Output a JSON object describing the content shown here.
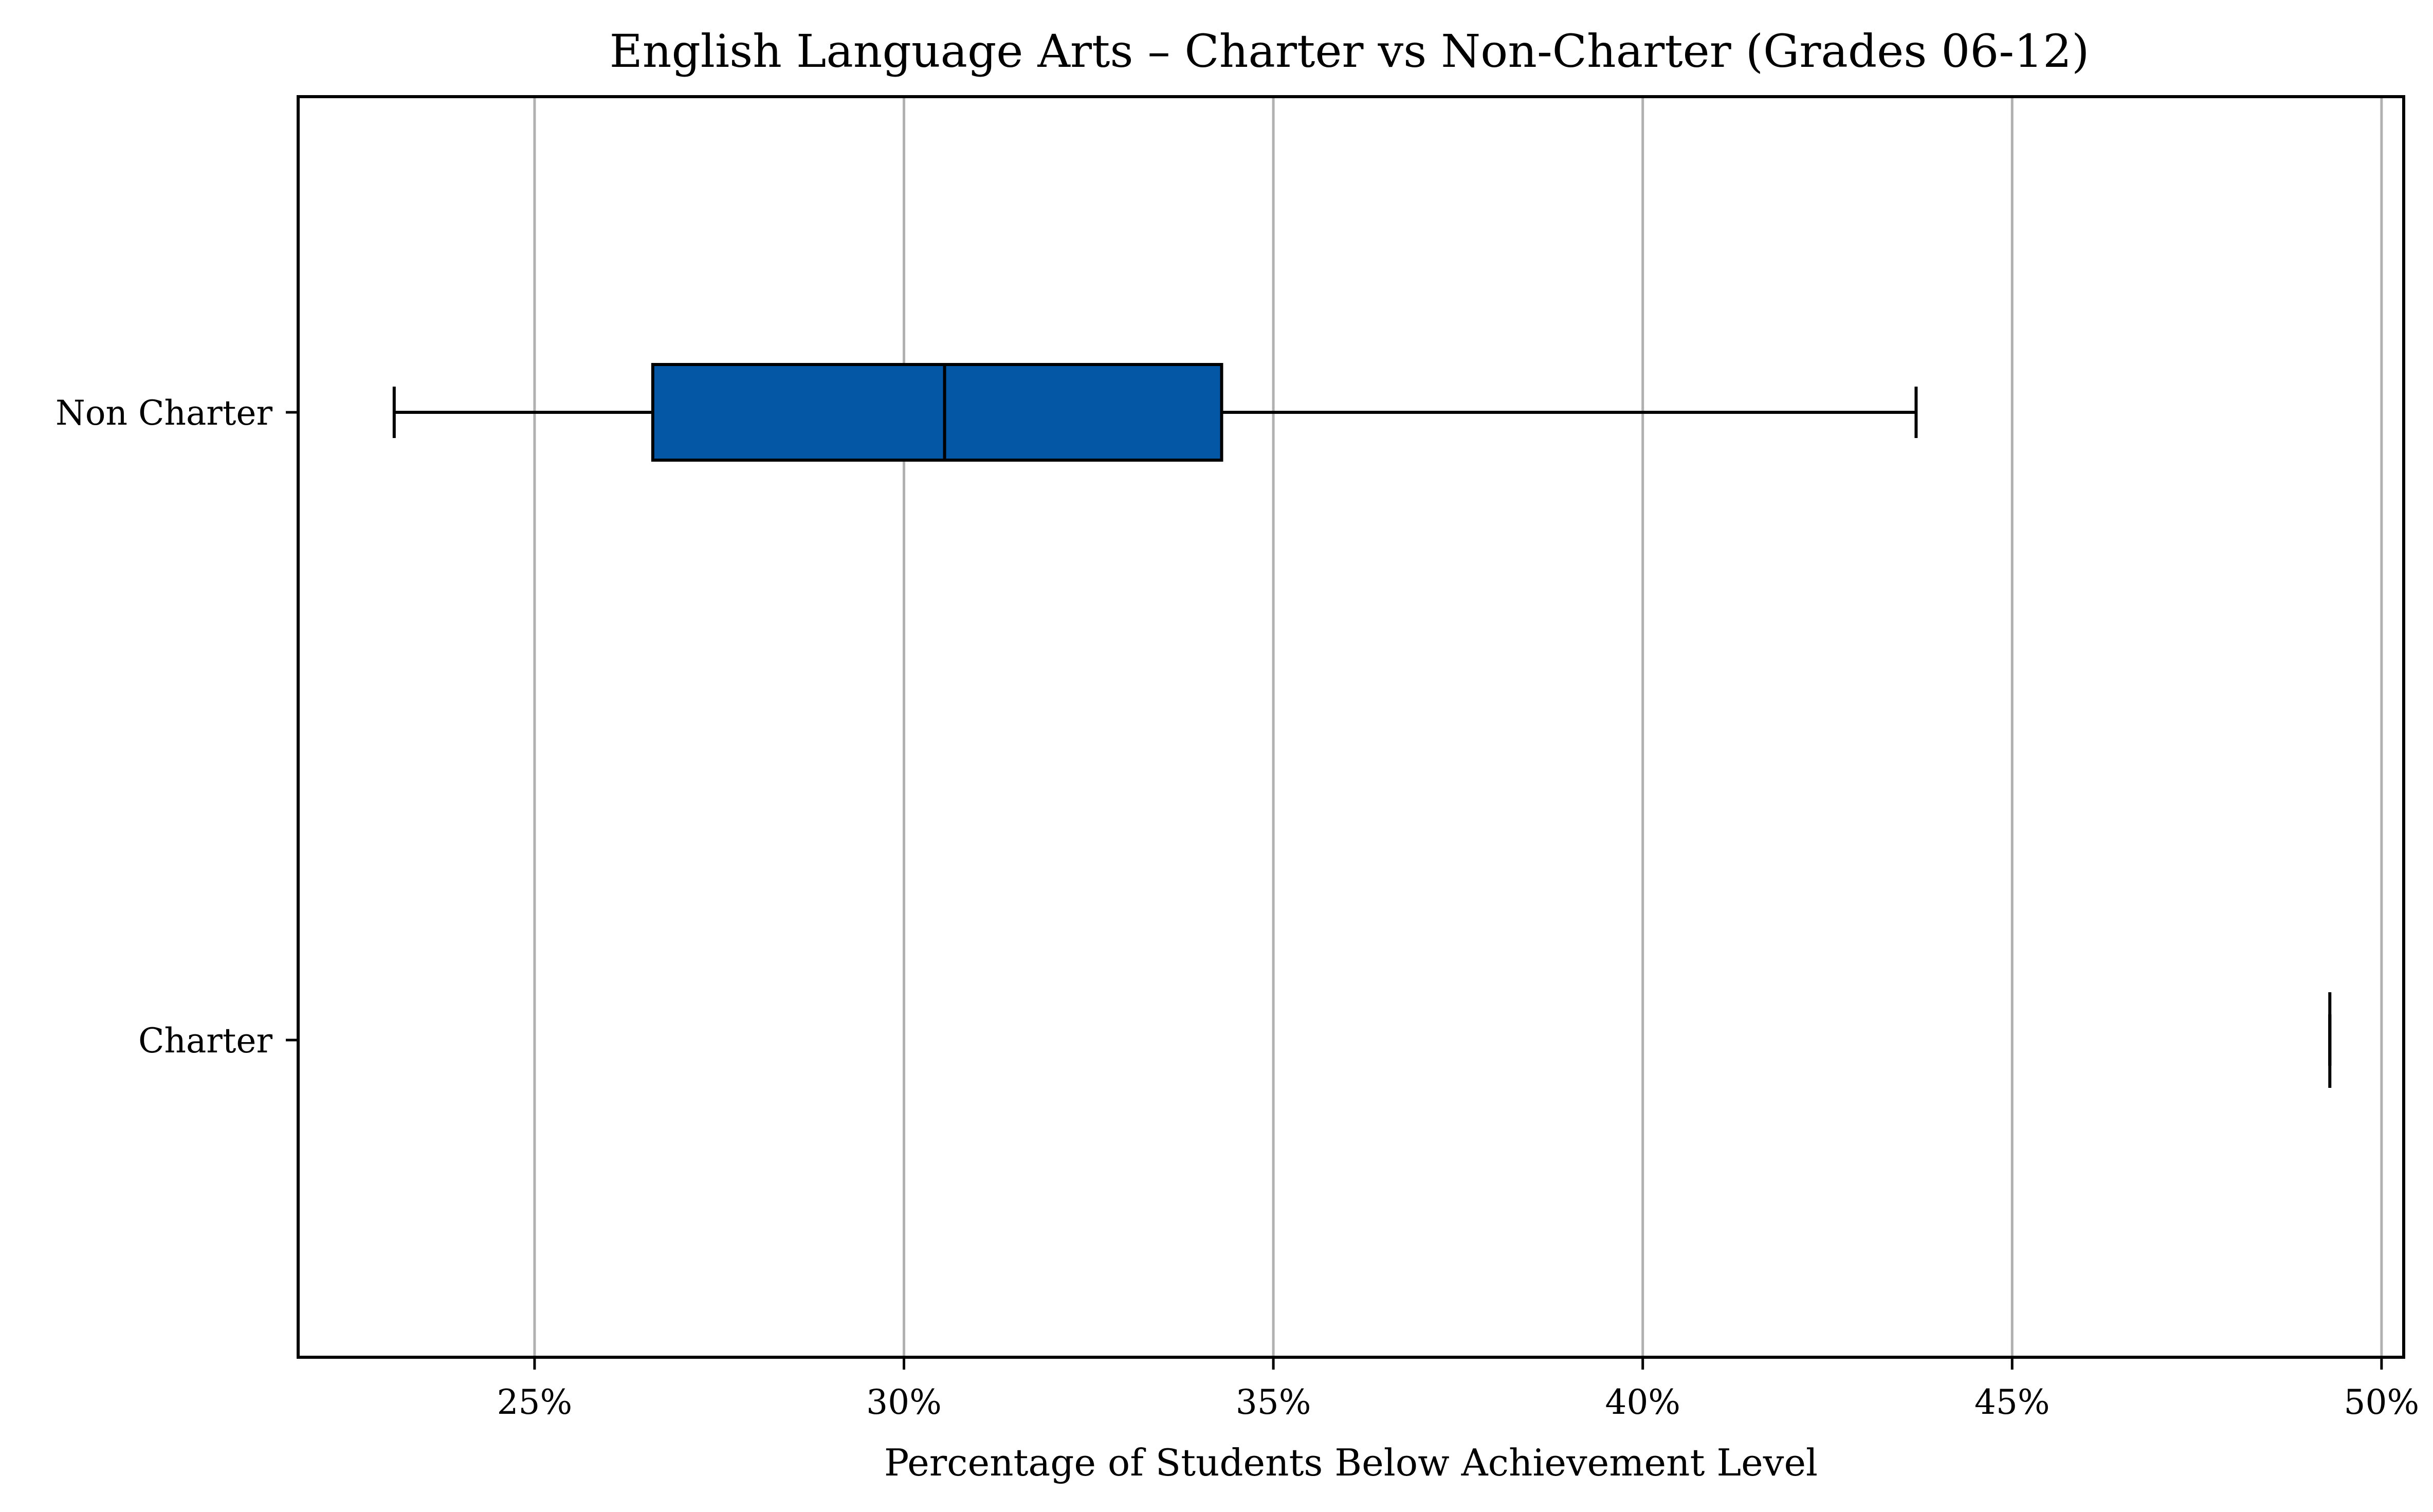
{
  "chart_data": {
    "type": "box",
    "orientation": "horizontal",
    "title": "English Language Arts – Charter vs Non-Charter (Grades 06-12)",
    "xlabel": "Percentage of Students Below Achievement Level",
    "ylabel": "",
    "xlim": [
      21.8,
      50.3
    ],
    "xticks": [
      25,
      30,
      35,
      40,
      45,
      50
    ],
    "xtick_labels": [
      "25%",
      "30%",
      "35%",
      "40%",
      "45%",
      "50%"
    ],
    "grid": "vertical",
    "categories": [
      "Non Charter",
      "Charter"
    ],
    "series": [
      {
        "category": "Non Charter",
        "whisker_low": 23.1,
        "q1": 26.6,
        "median": 30.55,
        "q3": 34.3,
        "whisker_high": 43.7
      },
      {
        "category": "Charter",
        "whisker_low": 49.3,
        "q1": 49.3,
        "median": 49.3,
        "q3": 49.3,
        "whisker_high": 49.3
      }
    ],
    "colors": {
      "box_fill": "#0457A4",
      "box_edge": "#000000",
      "grid": "#b0b0b0"
    }
  }
}
